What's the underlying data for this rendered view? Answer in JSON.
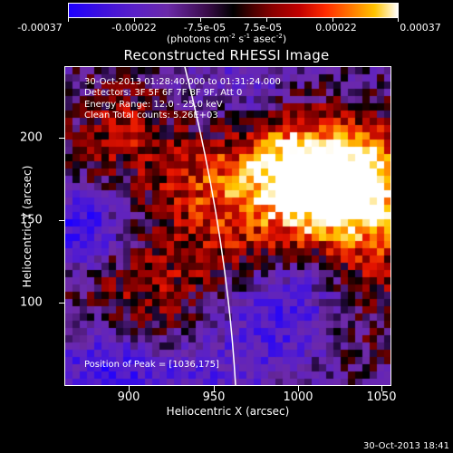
{
  "colorbar": {
    "tick_labels": [
      "-0.00037",
      "-0.00022",
      "-7.5e-05",
      "7.5e-05",
      "0.00022",
      "0.00037"
    ],
    "tick_values": [
      -0.00037,
      -0.00022,
      -7.5e-05,
      7.5e-05,
      0.00022,
      0.00037
    ],
    "range": [
      -0.00037,
      0.00037
    ],
    "units_text": "(photons cm",
    "units_parts": [
      "(photons cm",
      "-2",
      " s",
      "-1",
      " asec",
      "-2",
      ")"
    ],
    "colors": [
      "#1e00ff",
      "#5a20c8",
      "#3a0c4a",
      "#000000",
      "#8a0000",
      "#ff2a00",
      "#ffc400",
      "#ffffff"
    ]
  },
  "title": "Reconstructed RHESSI Image",
  "info": {
    "time_range": "30-Oct-2013 01:28:40.000 to 01:31:24.000",
    "detectors": "Detectors: 3F 5F 6F 7F 8F 9F, Att 0",
    "energy_range": "Energy Range: 12.0 - 25.0 keV",
    "clean": "Clean     Total counts: 5.26E+03",
    "peak": "Position of Peak = [1036,175]"
  },
  "axes": {
    "xlabel": "Heliocentric X (arcsec)",
    "ylabel": "Heliocentric Y (arcsec)",
    "x_ticks": [
      "900",
      "950",
      "1000",
      "1050"
    ],
    "x_tick_values": [
      900,
      950,
      1000,
      1050
    ],
    "y_ticks": [
      "100",
      "150",
      "200"
    ],
    "y_tick_values": [
      100,
      150,
      200
    ],
    "xlim": [
      864,
      1055
    ],
    "ylim": [
      60,
      240
    ]
  },
  "chart_data": {
    "type": "heatmap",
    "title": "Reconstructed RHESSI Image",
    "xlabel": "Heliocentric X (arcsec)",
    "ylabel": "Heliocentric Y (arcsec)",
    "xlim": [
      864,
      1055
    ],
    "ylim": [
      60,
      240
    ],
    "peak": [
      1036,
      175
    ],
    "color_range": [
      -0.00037,
      0.00037
    ]
  },
  "timestamp": "30-Oct-2013 18:41"
}
